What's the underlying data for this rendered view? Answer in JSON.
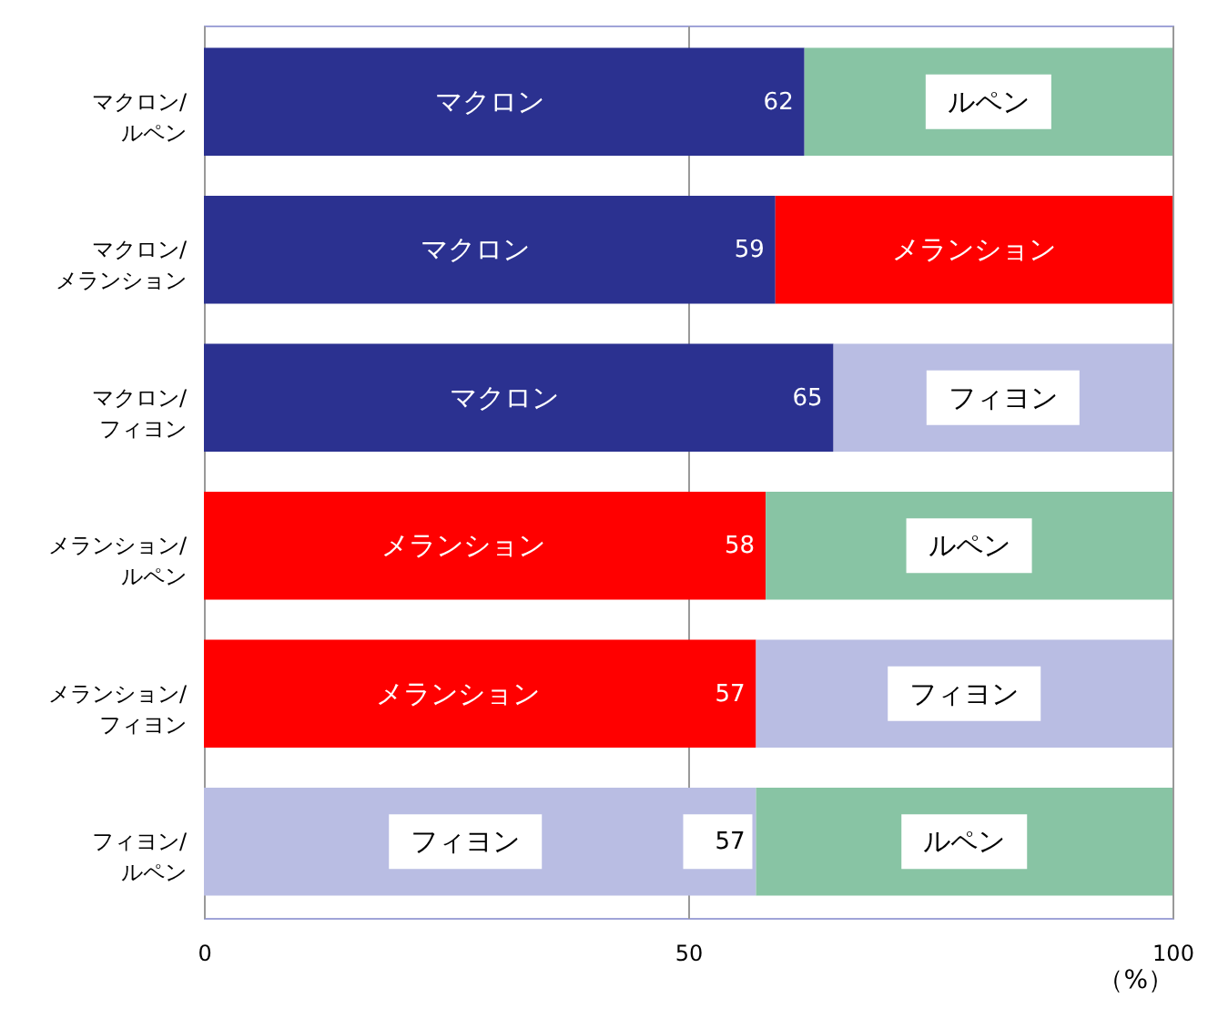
{
  "chart_data": {
    "type": "bar",
    "orientation": "horizontal",
    "stacked": true,
    "categories": [
      "マクロン/ルペン",
      "マクロン/メランション",
      "マクロン/フィヨン",
      "メランション/ルペン",
      "メランション/フィヨン",
      "フィヨン/ルペン"
    ],
    "series": [
      {
        "values": [
          62,
          59,
          65,
          58,
          57,
          57
        ],
        "colors": [
          "#2b3190",
          "#2b3190",
          "#2b3190",
          "#ff0000",
          "#ff0000",
          "#b9bde3"
        ],
        "value_labels": [
          "62",
          "59",
          "65",
          "58",
          "57",
          "57"
        ]
      },
      {
        "values": [
          38,
          41,
          35,
          42,
          43,
          43
        ],
        "colors": [
          "#88c4a4",
          "#ff0000",
          "#b9bde3",
          "#88c4a4",
          "#b9bde3",
          "#88c4a4"
        ]
      }
    ],
    "xlim": [
      0,
      100
    ],
    "xticks": [
      0,
      50,
      100
    ],
    "xlabel": "（%）",
    "grid": "x",
    "annotations": [
      "マクロン",
      "ルペン",
      "マクロン",
      "メランション",
      "マクロン",
      "フィヨン",
      "メランション",
      "ルペン",
      "メランション",
      "フィヨン",
      "フィヨン",
      "ルペン"
    ]
  }
}
